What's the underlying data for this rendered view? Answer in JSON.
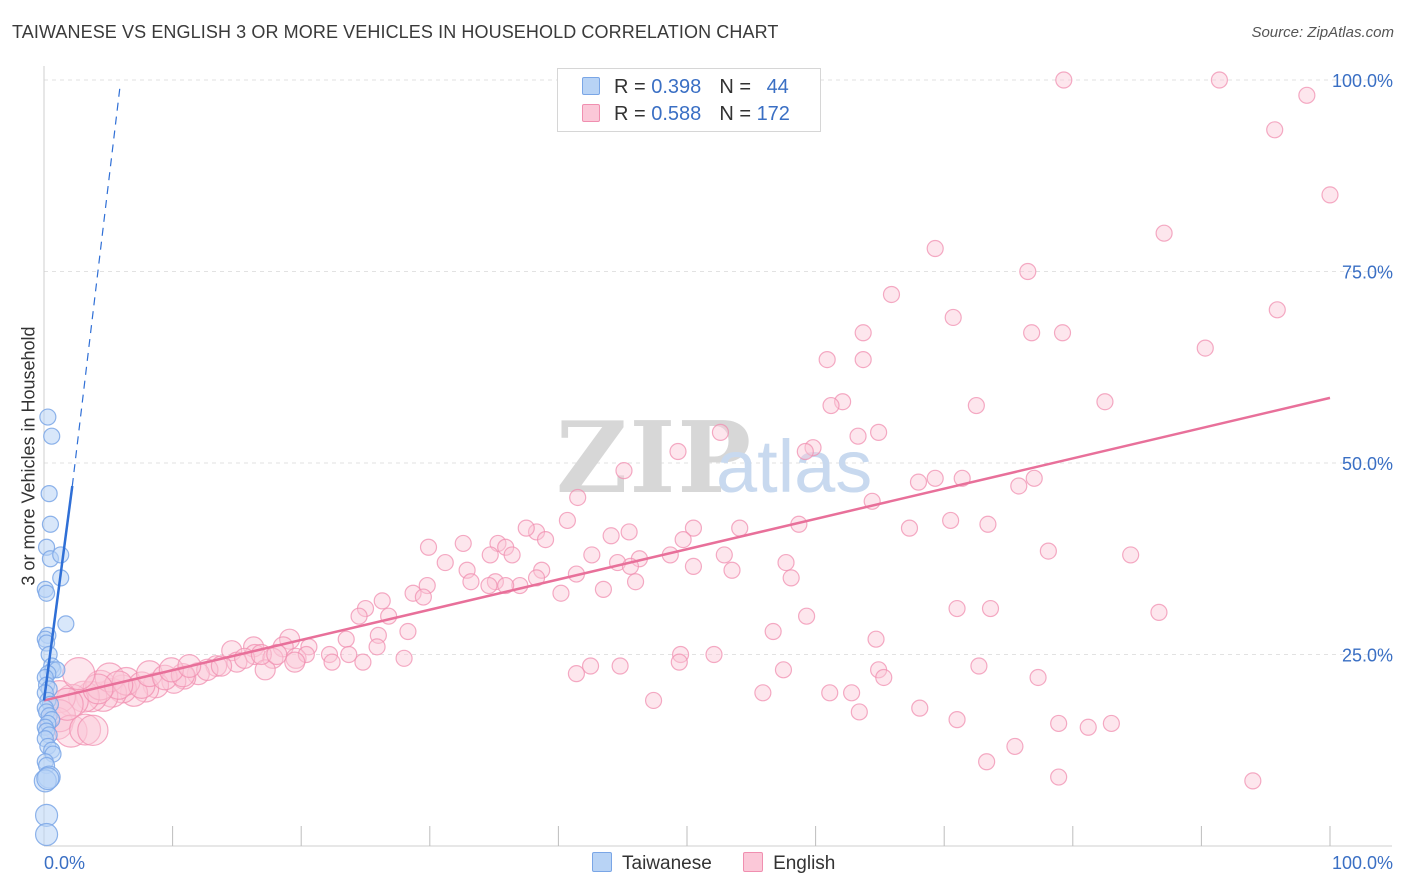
{
  "title": "TAIWANESE VS ENGLISH 3 OR MORE VEHICLES IN HOUSEHOLD CORRELATION CHART",
  "source": "Source: ZipAtlas.com",
  "watermark": {
    "zip": "ZIP",
    "atlas": "atlas"
  },
  "legend_top": [
    {
      "r_label": "R = ",
      "r_value": "0.398",
      "n_label": "N = ",
      "n_value": "44"
    },
    {
      "r_label": "R = ",
      "r_value": "0.588",
      "n_label": "N = ",
      "n_value": "172"
    }
  ],
  "legend_bottom": [
    "Taiwanese",
    "English"
  ],
  "colors": {
    "taiwanese_fill": "#b8d3f5",
    "taiwanese_stroke": "#7aa6e6",
    "taiwanese_line": "#2f6fd6",
    "english_fill": "#fbc8d8",
    "english_stroke": "#f08fb0",
    "english_line": "#e8709a",
    "axis_label": "#3a6fc4",
    "grid": "#e2e2e2"
  },
  "chart_data": {
    "type": "scatter",
    "title": "TAIWANESE VS ENGLISH 3 OR MORE VEHICLES IN HOUSEHOLD CORRELATION CHART",
    "xlabel": "",
    "ylabel": "3 or more Vehicles in Household",
    "xlim": [
      0,
      100
    ],
    "ylim": [
      0,
      105
    ],
    "x_tick_labels": [
      "0.0%",
      "100.0%"
    ],
    "y_ticks": [
      25,
      50,
      75,
      100
    ],
    "y_tick_labels": [
      "25.0%",
      "50.0%",
      "75.0%",
      "100.0%"
    ],
    "series": [
      {
        "name": "Taiwanese",
        "R": 0.398,
        "N": 44,
        "trend": {
          "x0": 0.0,
          "y0": 19.0,
          "x1": 2.2,
          "y1": 47.0
        },
        "trend_dashed": {
          "x0": 2.2,
          "y0": 47.0,
          "x1": 5.9,
          "y1": 99.0
        },
        "points": [
          [
            0.3,
            56
          ],
          [
            0.6,
            53.5
          ],
          [
            0.4,
            46
          ],
          [
            0.5,
            42
          ],
          [
            0.2,
            39
          ],
          [
            0.5,
            37.5
          ],
          [
            1.3,
            38
          ],
          [
            1.3,
            35
          ],
          [
            0.1,
            33.5
          ],
          [
            0.2,
            33
          ],
          [
            1.7,
            29
          ],
          [
            0.3,
            27.5
          ],
          [
            0.1,
            27
          ],
          [
            0.2,
            26.5
          ],
          [
            0.4,
            25
          ],
          [
            0.6,
            23.5
          ],
          [
            0.7,
            23
          ],
          [
            1.0,
            23
          ],
          [
            0.3,
            22.5
          ],
          [
            0.1,
            22
          ],
          [
            0.2,
            21
          ],
          [
            0.4,
            20.5
          ],
          [
            0.1,
            20
          ],
          [
            0.3,
            19
          ],
          [
            0.5,
            18.5
          ],
          [
            0.1,
            18
          ],
          [
            0.2,
            17.5
          ],
          [
            0.4,
            17
          ],
          [
            0.6,
            16.5
          ],
          [
            0.3,
            16
          ],
          [
            0.1,
            15.5
          ],
          [
            0.2,
            15
          ],
          [
            0.4,
            14.5
          ],
          [
            0.1,
            14
          ],
          [
            0.3,
            13
          ],
          [
            0.6,
            12.5
          ],
          [
            0.7,
            12
          ],
          [
            0.1,
            11
          ],
          [
            0.2,
            10.5
          ],
          [
            0.4,
            9
          ],
          [
            0.1,
            8.5
          ],
          [
            0.3,
            8.8
          ],
          [
            0.2,
            4.0
          ],
          [
            0.2,
            1.5
          ]
        ]
      },
      {
        "name": "English",
        "R": 0.588,
        "N": 172,
        "trend": {
          "x0": 0.0,
          "y0": 19.0,
          "x1": 100.0,
          "y1": 58.5
        },
        "points": [
          [
            79.3,
            100
          ],
          [
            91.4,
            100
          ],
          [
            98.2,
            98
          ],
          [
            95.7,
            93.5
          ],
          [
            100,
            85
          ],
          [
            87.1,
            80
          ],
          [
            69.3,
            78
          ],
          [
            76.5,
            75
          ],
          [
            65.9,
            72
          ],
          [
            70.7,
            69
          ],
          [
            95.9,
            70
          ],
          [
            76.8,
            67
          ],
          [
            79.2,
            67
          ],
          [
            63.7,
            67
          ],
          [
            60.9,
            63.5
          ],
          [
            63.7,
            63.5
          ],
          [
            90.3,
            65
          ],
          [
            82.5,
            58
          ],
          [
            72.5,
            57.5
          ],
          [
            62.1,
            58
          ],
          [
            61.2,
            57.5
          ],
          [
            64.9,
            54
          ],
          [
            63.3,
            53.5
          ],
          [
            59.8,
            52
          ],
          [
            59.2,
            51.5
          ],
          [
            52.6,
            54
          ],
          [
            49.3,
            51.5
          ],
          [
            45.1,
            49
          ],
          [
            75.8,
            47
          ],
          [
            77.0,
            48
          ],
          [
            71.4,
            48
          ],
          [
            69.3,
            48
          ],
          [
            68.0,
            47.5
          ],
          [
            64.4,
            45
          ],
          [
            41.5,
            45.5
          ],
          [
            40.7,
            42.5
          ],
          [
            38.3,
            41
          ],
          [
            37.5,
            41.5
          ],
          [
            39.0,
            40
          ],
          [
            35.3,
            39.5
          ],
          [
            32.6,
            39.5
          ],
          [
            29.9,
            39
          ],
          [
            35.9,
            39
          ],
          [
            44.1,
            40.5
          ],
          [
            45.5,
            41
          ],
          [
            50.5,
            41.5
          ],
          [
            54.1,
            41.5
          ],
          [
            58.7,
            42
          ],
          [
            67.3,
            41.5
          ],
          [
            73.4,
            42
          ],
          [
            84.5,
            38
          ],
          [
            78.1,
            38.5
          ],
          [
            70.5,
            42.5
          ],
          [
            49.7,
            40
          ],
          [
            48.7,
            38
          ],
          [
            46.3,
            37.5
          ],
          [
            44.6,
            37
          ],
          [
            42.6,
            38
          ],
          [
            36.4,
            38
          ],
          [
            34.7,
            38
          ],
          [
            31.2,
            37
          ],
          [
            32.9,
            36
          ],
          [
            35.1,
            34.5
          ],
          [
            33.2,
            34.5
          ],
          [
            34.6,
            34
          ],
          [
            37.0,
            34
          ],
          [
            38.7,
            36
          ],
          [
            41.4,
            35.5
          ],
          [
            45.6,
            36.5
          ],
          [
            50.5,
            36.5
          ],
          [
            52.9,
            38
          ],
          [
            53.5,
            36
          ],
          [
            57.7,
            37
          ],
          [
            58.1,
            35
          ],
          [
            46.0,
            34.5
          ],
          [
            43.5,
            33.5
          ],
          [
            40.2,
            33
          ],
          [
            38.3,
            35
          ],
          [
            35.9,
            34
          ],
          [
            29.8,
            34
          ],
          [
            28.7,
            33
          ],
          [
            29.5,
            32.5
          ],
          [
            26.3,
            32
          ],
          [
            25.0,
            31
          ],
          [
            24.5,
            30
          ],
          [
            26.8,
            30
          ],
          [
            28.3,
            28
          ],
          [
            26.0,
            27.5
          ],
          [
            23.5,
            27
          ],
          [
            19.1,
            27
          ],
          [
            20.6,
            26
          ],
          [
            18.6,
            26
          ],
          [
            16.3,
            26
          ],
          [
            14.6,
            25.5
          ],
          [
            16.4,
            25
          ],
          [
            17.8,
            24.5
          ],
          [
            19.6,
            24.5
          ],
          [
            20.4,
            25
          ],
          [
            22.2,
            25
          ],
          [
            23.7,
            25
          ],
          [
            25.9,
            26
          ],
          [
            28.0,
            24.5
          ],
          [
            24.8,
            24
          ],
          [
            22.4,
            24
          ],
          [
            19.5,
            24
          ],
          [
            17.2,
            23
          ],
          [
            15.0,
            24
          ],
          [
            13.4,
            23.5
          ],
          [
            12.0,
            22.5
          ],
          [
            10.9,
            22
          ],
          [
            10.1,
            21.5
          ],
          [
            8.7,
            21
          ],
          [
            7.9,
            20.5
          ],
          [
            7.0,
            20
          ],
          [
            6.1,
            20.5
          ],
          [
            5.3,
            20
          ],
          [
            4.6,
            19.5
          ],
          [
            3.7,
            19.5
          ],
          [
            3.1,
            19.5
          ],
          [
            2.2,
            19
          ],
          [
            1.2,
            19.5
          ],
          [
            1.0,
            16
          ],
          [
            1.2,
            17
          ],
          [
            2.1,
            15
          ],
          [
            3.2,
            15.2
          ],
          [
            3.8,
            15.1
          ],
          [
            4.4,
            21
          ],
          [
            5.1,
            22
          ],
          [
            6.4,
            21.5
          ],
          [
            7.6,
            21
          ],
          [
            8.2,
            22.5
          ],
          [
            9.4,
            22
          ],
          [
            10.8,
            22.3
          ],
          [
            12.7,
            23
          ],
          [
            13.8,
            23.5
          ],
          [
            9.9,
            23
          ],
          [
            15.6,
            24.5
          ],
          [
            16.9,
            25
          ],
          [
            18.1,
            25
          ],
          [
            11.3,
            23.5
          ],
          [
            5.8,
            21
          ],
          [
            4.2,
            20.5
          ],
          [
            2.7,
            22.5
          ],
          [
            1.8,
            18.5
          ],
          [
            44.8,
            23.5
          ],
          [
            42.5,
            23.5
          ],
          [
            41.4,
            22.5
          ],
          [
            49.5,
            25
          ],
          [
            52.1,
            25
          ],
          [
            49.4,
            24
          ],
          [
            55.9,
            20
          ],
          [
            57.5,
            23
          ],
          [
            47.4,
            19
          ],
          [
            61.1,
            20
          ],
          [
            62.8,
            20
          ],
          [
            64.9,
            23
          ],
          [
            63.4,
            17.5
          ],
          [
            65.3,
            22
          ],
          [
            68.1,
            18
          ],
          [
            71.0,
            16.5
          ],
          [
            72.7,
            23.5
          ],
          [
            77.3,
            22
          ],
          [
            78.9,
            16
          ],
          [
            81.2,
            15.5
          ],
          [
            83.0,
            16
          ],
          [
            75.5,
            13
          ],
          [
            73.3,
            11
          ],
          [
            78.9,
            9
          ],
          [
            94.0,
            8.5
          ],
          [
            86.7,
            30.5
          ],
          [
            73.6,
            31
          ],
          [
            71.0,
            31
          ],
          [
            59.3,
            30
          ],
          [
            56.7,
            28
          ],
          [
            64.7,
            27
          ]
        ]
      }
    ]
  }
}
